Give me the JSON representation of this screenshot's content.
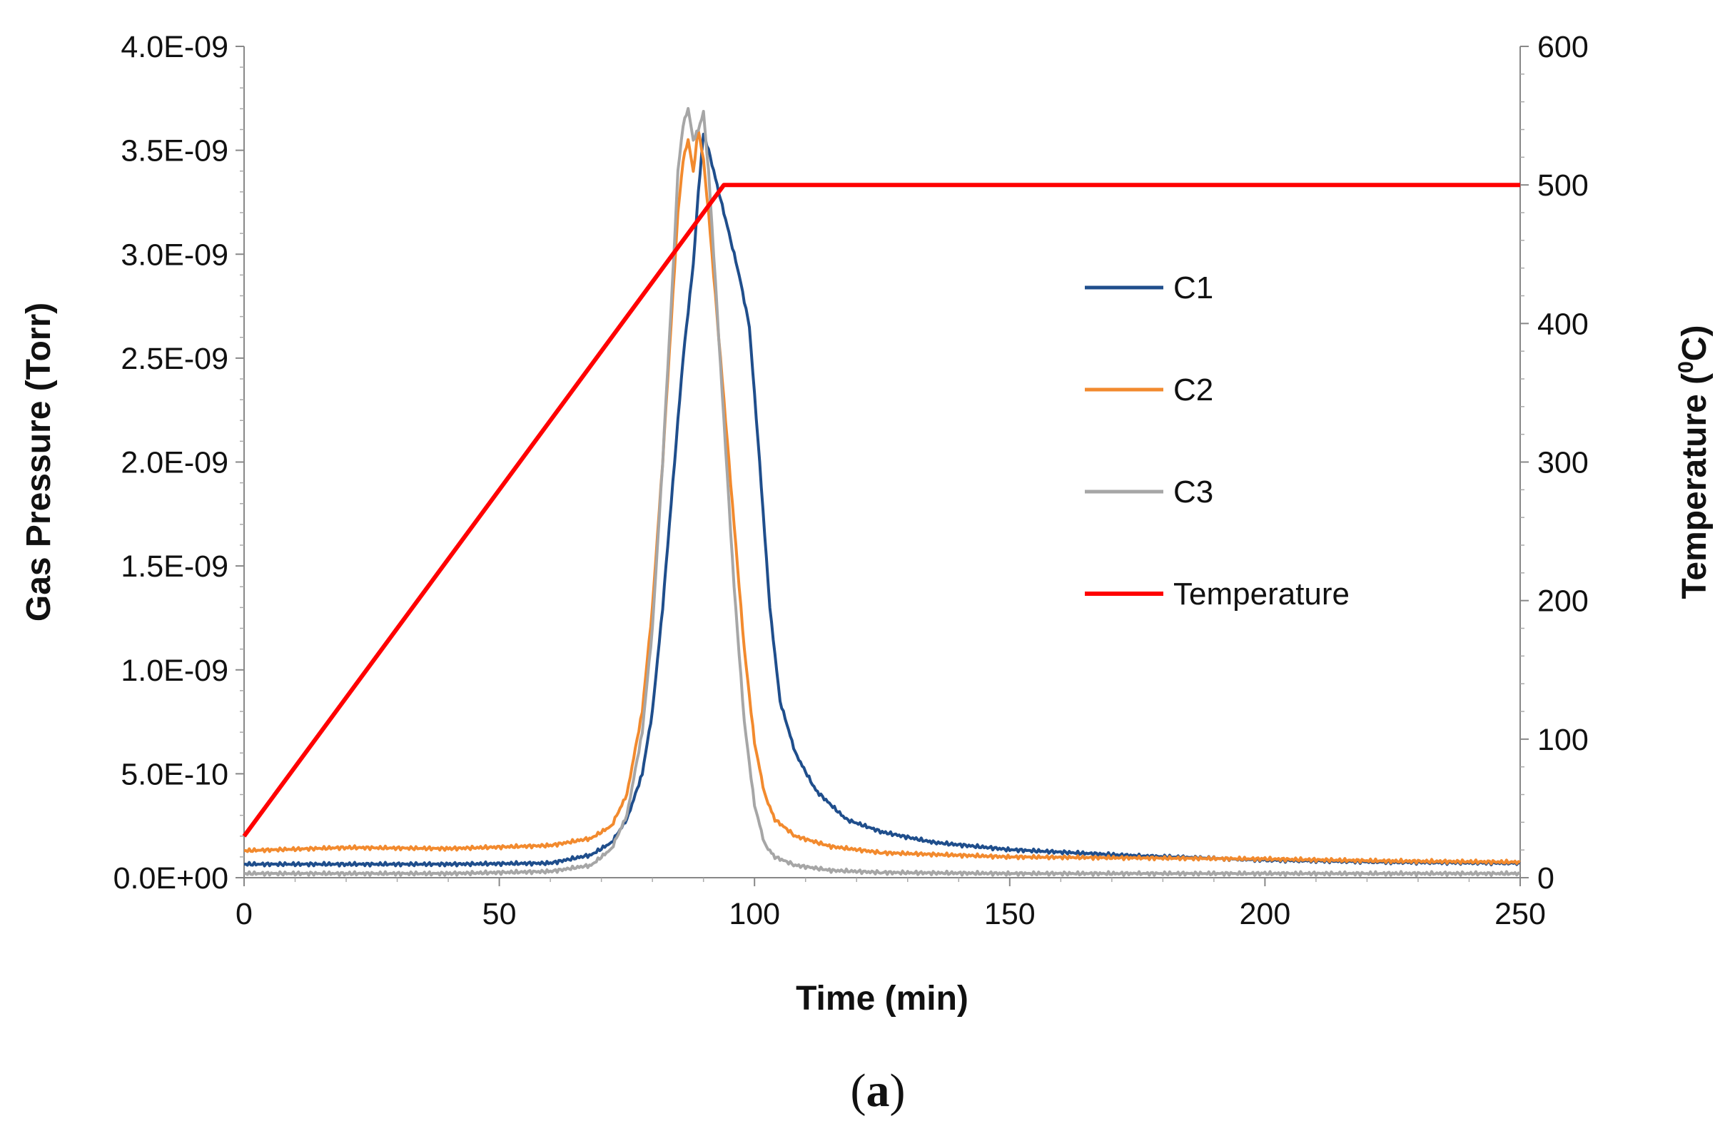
{
  "chart_data": {
    "type": "line",
    "caption_open": "(",
    "caption_letter": "a",
    "caption_close": ")",
    "xlabel": "Time (min)",
    "ylabel_left": "Gas Pressure (Torr)",
    "ylabel_right": "Temperature (",
    "ylabel_right_sup": "0",
    "ylabel_right_end": "C)",
    "xlim": [
      0,
      250
    ],
    "ylim_left": [
      0,
      4e-09
    ],
    "ylim_right": [
      0,
      600
    ],
    "x_ticks": [
      0,
      50,
      100,
      150,
      200,
      250
    ],
    "x_tick_labels": [
      "0",
      "50",
      "100",
      "150",
      "200",
      "250"
    ],
    "y_left_ticks": [
      0,
      5e-10,
      1e-09,
      1.5e-09,
      2e-09,
      2.5e-09,
      3e-09,
      3.5e-09,
      4e-09
    ],
    "y_left_tick_labels": [
      "0.0E+00",
      "5.0E-10",
      "1.0E-09",
      "1.5E-09",
      "2.0E-09",
      "2.5E-09",
      "3.0E-09",
      "3.5E-09",
      "4.0E-09"
    ],
    "y_right_ticks": [
      0,
      100,
      200,
      300,
      400,
      500,
      600
    ],
    "y_right_tick_labels": [
      "0",
      "100",
      "200",
      "300",
      "400",
      "500",
      "600"
    ],
    "legend_position": "center-right",
    "series": [
      {
        "name": "C1",
        "axis": "left",
        "color": "#1f4e8c",
        "x": [
          0,
          20,
          40,
          60,
          68,
          72,
          75,
          78,
          80,
          82,
          84,
          86,
          88,
          89,
          90,
          91,
          93,
          95,
          97,
          99,
          101,
          103,
          105,
          108,
          112,
          118,
          125,
          135,
          150,
          175,
          200,
          225,
          250
        ],
        "values": [
          6.5e-11,
          6.5e-11,
          6.5e-11,
          7e-11,
          1.1e-10,
          1.7e-10,
          2.8e-10,
          5e-10,
          8e-10,
          1.3e-09,
          1.9e-09,
          2.5e-09,
          2.95e-09,
          3.3e-09,
          3.58e-09,
          3.5e-09,
          3.3e-09,
          3.1e-09,
          2.9e-09,
          2.65e-09,
          2e-09,
          1.3e-09,
          8.5e-10,
          6e-10,
          4.2e-10,
          2.8e-10,
          2.2e-10,
          1.7e-10,
          1.35e-10,
          1.05e-10,
          8.5e-11,
          7.5e-11,
          7e-11
        ]
      },
      {
        "name": "C2",
        "axis": "left",
        "color": "#f28a2e",
        "x": [
          0,
          20,
          40,
          60,
          68,
          72,
          75,
          78,
          80,
          82,
          84,
          85,
          86,
          87,
          88,
          89,
          90,
          91,
          92,
          94,
          96,
          98,
          100,
          102,
          104,
          108,
          115,
          125,
          150,
          175,
          200,
          225,
          250
        ],
        "values": [
          1.3e-10,
          1.45e-10,
          1.4e-10,
          1.55e-10,
          1.9e-10,
          2.5e-10,
          4e-10,
          8e-10,
          1.3e-09,
          2e-09,
          2.8e-09,
          3.2e-09,
          3.45e-09,
          3.55e-09,
          3.4e-09,
          3.6e-09,
          3.45e-09,
          3.2e-09,
          2.9e-09,
          2.3e-09,
          1.7e-09,
          1.1e-09,
          6.5e-10,
          4e-10,
          2.8e-10,
          2e-10,
          1.5e-10,
          1.2e-10,
          1e-10,
          9.5e-11,
          9e-11,
          8e-11,
          7.5e-11
        ]
      },
      {
        "name": "C3",
        "axis": "left",
        "color": "#a6a6a6",
        "x": [
          0,
          20,
          40,
          60,
          68,
          72,
          75,
          78,
          80,
          82,
          84,
          85,
          86,
          87,
          88,
          89,
          90,
          91,
          92,
          94,
          96,
          98,
          100,
          102,
          104,
          108,
          115,
          125,
          150,
          175,
          200,
          225,
          250
        ],
        "values": [
          2e-11,
          2e-11,
          2e-11,
          3e-11,
          6e-11,
          1.4e-10,
          3e-10,
          7e-10,
          1.2e-09,
          2e-09,
          2.9e-09,
          3.4e-09,
          3.62e-09,
          3.7e-09,
          3.55e-09,
          3.6e-09,
          3.68e-09,
          3.4e-09,
          3e-09,
          2.2e-09,
          1.4e-09,
          7.5e-10,
          3.5e-10,
          1.6e-10,
          1e-10,
          6e-11,
          3.5e-11,
          2.5e-11,
          2e-11,
          2e-11,
          2e-11,
          2e-11,
          2e-11
        ]
      },
      {
        "name": "Temperature",
        "axis": "right",
        "color": "#ff0000",
        "x": [
          0,
          94,
          250
        ],
        "values": [
          30,
          500,
          500
        ]
      }
    ]
  }
}
